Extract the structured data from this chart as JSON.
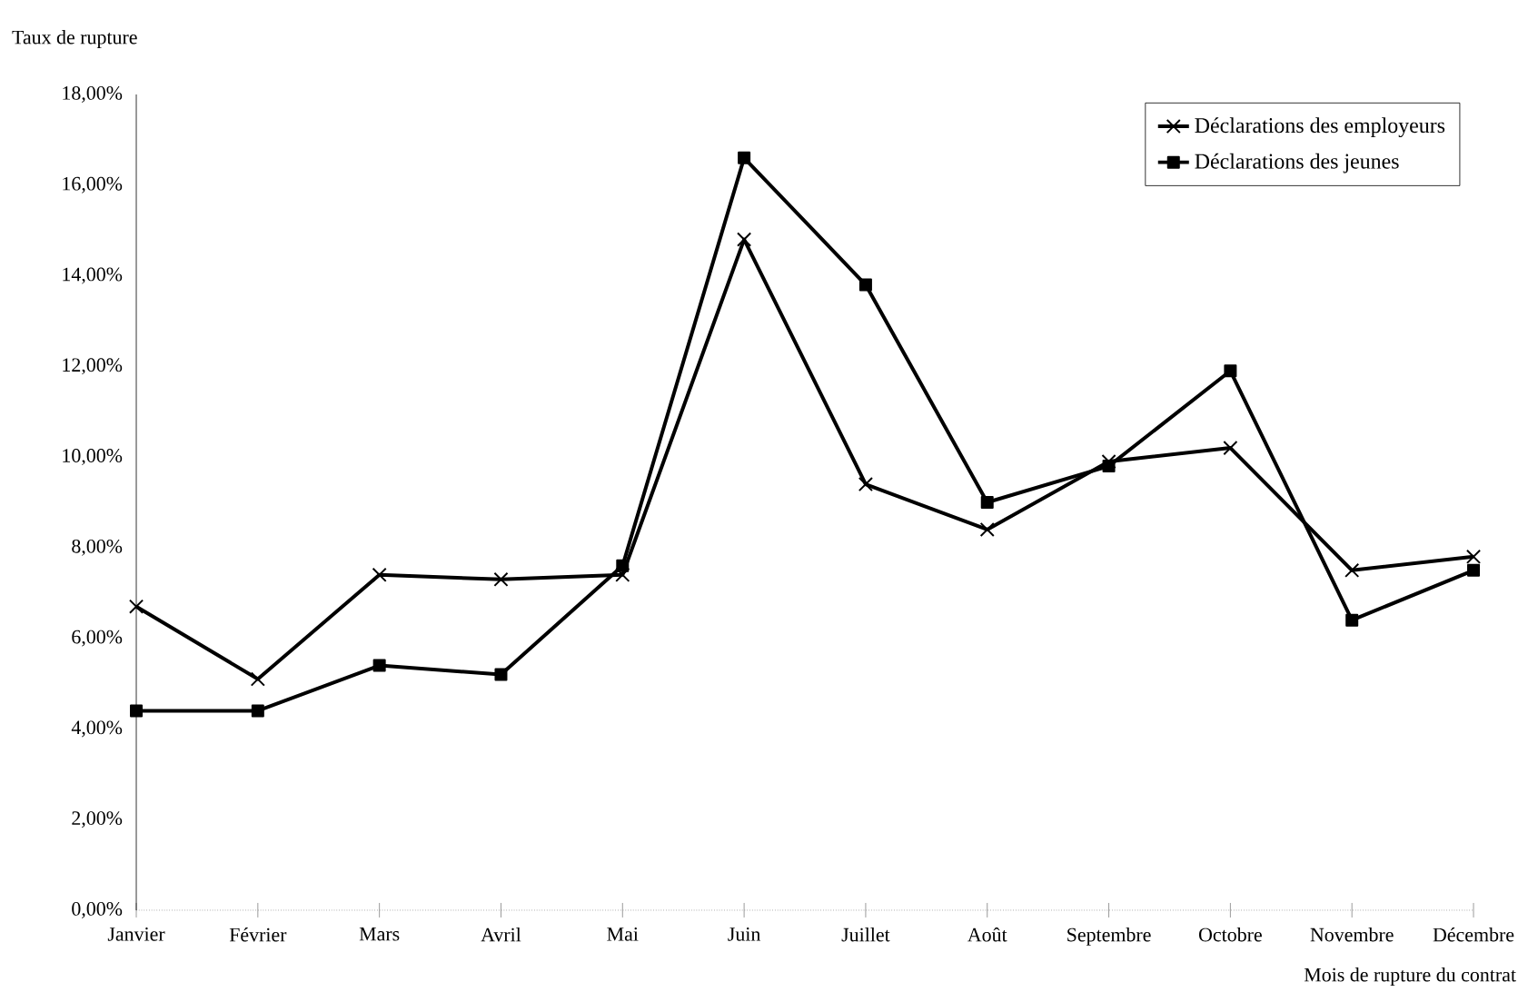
{
  "chart_data": {
    "type": "line",
    "ylabel": "Taux de rupture",
    "xlabel": "Mois de rupture du contrat",
    "categories": [
      "Janvier",
      "Février",
      "Mars",
      "Avril",
      "Mai",
      "Juin",
      "Juillet",
      "Août",
      "Septembre",
      "Octobre",
      "Novembre",
      "Décembre"
    ],
    "series": [
      {
        "name": "Déclarations des employeurs",
        "color": "#000000",
        "marker": "cross",
        "values": [
          6.7,
          5.1,
          7.4,
          7.3,
          7.4,
          14.8,
          9.4,
          8.4,
          9.9,
          10.2,
          7.5,
          7.8
        ]
      },
      {
        "name": "Déclarations des jeunes",
        "color": "#000000",
        "marker": "square",
        "values": [
          4.4,
          4.4,
          5.4,
          5.2,
          7.6,
          16.6,
          13.8,
          9.0,
          9.8,
          11.9,
          6.4,
          7.5
        ]
      }
    ],
    "ylim": [
      0,
      18
    ],
    "yticks": [
      {
        "value": 0,
        "label": "0,00%"
      },
      {
        "value": 2,
        "label": "2,00%"
      },
      {
        "value": 4,
        "label": "4,00%"
      },
      {
        "value": 6,
        "label": "6,00%"
      },
      {
        "value": 8,
        "label": "8,00%"
      },
      {
        "value": 10,
        "label": "10,00%"
      },
      {
        "value": 12,
        "label": "12,00%"
      },
      {
        "value": 14,
        "label": "14,00%"
      },
      {
        "value": 16,
        "label": "16,00%"
      },
      {
        "value": 18,
        "label": "18,00%"
      }
    ],
    "legend": "top right",
    "line_style": "solid",
    "grid": false
  }
}
